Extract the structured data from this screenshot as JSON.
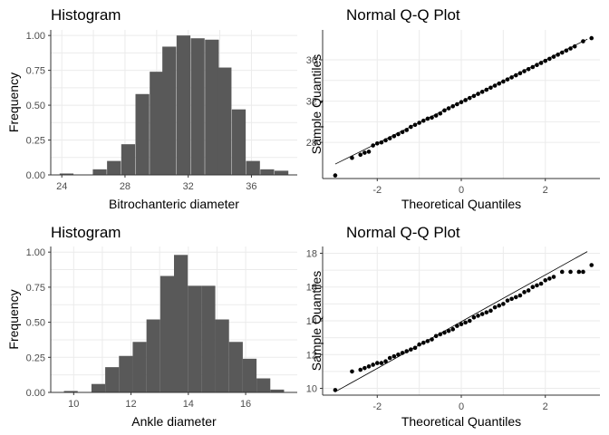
{
  "chart_data": [
    {
      "type": "bar",
      "title": "Histogram",
      "xlabel": "Bitrochanteric diameter",
      "ylabel": "Frequency",
      "xlim": [
        23.3,
        38.9
      ],
      "ylim": [
        0,
        1.04
      ],
      "xticks": [
        24,
        28,
        32,
        36
      ],
      "yticks": [
        0.0,
        0.25,
        0.5,
        0.75,
        1.0
      ],
      "ytick_labels": [
        "0.00",
        "0.25",
        "0.50",
        "0.75",
        "1.00"
      ],
      "bin_width": 0.875,
      "bins": [
        {
          "x": 24.3,
          "y": 0.01
        },
        {
          "x": 26.4,
          "y": 0.04
        },
        {
          "x": 27.3,
          "y": 0.1
        },
        {
          "x": 28.2,
          "y": 0.22
        },
        {
          "x": 29.1,
          "y": 0.58
        },
        {
          "x": 30.0,
          "y": 0.74
        },
        {
          "x": 30.8,
          "y": 0.92
        },
        {
          "x": 31.7,
          "y": 1.0
        },
        {
          "x": 32.6,
          "y": 0.98
        },
        {
          "x": 33.5,
          "y": 0.97
        },
        {
          "x": 34.3,
          "y": 0.77
        },
        {
          "x": 35.2,
          "y": 0.47
        },
        {
          "x": 36.1,
          "y": 0.1
        },
        {
          "x": 37.0,
          "y": 0.04
        },
        {
          "x": 37.9,
          "y": 0.03
        }
      ]
    },
    {
      "type": "scatter",
      "title": "Normal Q-Q Plot",
      "xlabel": "Theoretical Quantiles",
      "ylabel": "Sample Quantiles",
      "xlim": [
        -3.3,
        3.3
      ],
      "ylim": [
        24.5,
        38.9
      ],
      "xticks": [
        -2,
        0,
        2
      ],
      "yticks": [
        28,
        32,
        36
      ],
      "line": {
        "x": [
          -3.0,
          3.0
        ],
        "y": [
          25.9,
          38.0
        ]
      },
      "points": [
        [
          -3.0,
          24.8
        ],
        [
          -2.6,
          26.5
        ],
        [
          -2.4,
          26.8
        ],
        [
          -2.3,
          27.0
        ],
        [
          -2.2,
          27.1
        ],
        [
          -2.1,
          27.7
        ],
        [
          -2.0,
          27.9
        ],
        [
          -1.9,
          28.0
        ],
        [
          -1.8,
          28.2
        ],
        [
          -1.7,
          28.4
        ],
        [
          -1.6,
          28.6
        ],
        [
          -1.5,
          28.8
        ],
        [
          -1.4,
          29.0
        ],
        [
          -1.3,
          29.2
        ],
        [
          -1.2,
          29.5
        ],
        [
          -1.1,
          29.7
        ],
        [
          -1.0,
          29.9
        ],
        [
          -0.9,
          30.1
        ],
        [
          -0.8,
          30.3
        ],
        [
          -0.7,
          30.4
        ],
        [
          -0.6,
          30.6
        ],
        [
          -0.5,
          30.8
        ],
        [
          -0.4,
          31.1
        ],
        [
          -0.3,
          31.3
        ],
        [
          -0.2,
          31.5
        ],
        [
          -0.1,
          31.7
        ],
        [
          0.0,
          31.9
        ],
        [
          0.1,
          32.1
        ],
        [
          0.2,
          32.3
        ],
        [
          0.3,
          32.5
        ],
        [
          0.4,
          32.7
        ],
        [
          0.5,
          32.9
        ],
        [
          0.6,
          33.1
        ],
        [
          0.7,
          33.3
        ],
        [
          0.8,
          33.5
        ],
        [
          0.9,
          33.7
        ],
        [
          1.0,
          33.9
        ],
        [
          1.1,
          34.1
        ],
        [
          1.2,
          34.3
        ],
        [
          1.3,
          34.5
        ],
        [
          1.4,
          34.7
        ],
        [
          1.5,
          34.9
        ],
        [
          1.6,
          35.1
        ],
        [
          1.7,
          35.3
        ],
        [
          1.8,
          35.5
        ],
        [
          1.9,
          35.7
        ],
        [
          2.0,
          35.9
        ],
        [
          2.1,
          36.1
        ],
        [
          2.2,
          36.3
        ],
        [
          2.3,
          36.5
        ],
        [
          2.4,
          36.7
        ],
        [
          2.5,
          36.9
        ],
        [
          2.6,
          37.1
        ],
        [
          2.7,
          37.3
        ],
        [
          2.9,
          37.8
        ],
        [
          3.1,
          38.1
        ]
      ]
    },
    {
      "type": "bar",
      "title": "Histogram",
      "xlabel": "Ankle diameter",
      "ylabel": "Frequency",
      "xlim": [
        9.2,
        17.8
      ],
      "ylim": [
        0,
        1.04
      ],
      "xticks": [
        10,
        12,
        14,
        16
      ],
      "yticks": [
        0.0,
        0.25,
        0.5,
        0.75,
        1.0
      ],
      "ytick_labels": [
        "0.00",
        "0.25",
        "0.50",
        "0.75",
        "1.00"
      ],
      "bin_width": 0.48,
      "bins": [
        {
          "x": 9.9,
          "y": 0.01
        },
        {
          "x": 10.86,
          "y": 0.06
        },
        {
          "x": 11.34,
          "y": 0.18
        },
        {
          "x": 11.82,
          "y": 0.26
        },
        {
          "x": 12.3,
          "y": 0.36
        },
        {
          "x": 12.78,
          "y": 0.52
        },
        {
          "x": 13.26,
          "y": 0.83
        },
        {
          "x": 13.74,
          "y": 0.98
        },
        {
          "x": 14.22,
          "y": 0.76
        },
        {
          "x": 14.7,
          "y": 0.76
        },
        {
          "x": 15.18,
          "y": 0.52
        },
        {
          "x": 15.66,
          "y": 0.36
        },
        {
          "x": 16.14,
          "y": 0.24
        },
        {
          "x": 16.62,
          "y": 0.1
        },
        {
          "x": 17.1,
          "y": 0.02
        }
      ]
    },
    {
      "type": "scatter",
      "title": "Normal Q-Q Plot",
      "xlabel": "Theoretical Quantiles",
      "ylabel": "Sample Quantiles",
      "xlim": [
        -3.3,
        3.3
      ],
      "ylim": [
        9.6,
        18.4
      ],
      "xticks": [
        -2,
        0,
        2
      ],
      "yticks": [
        10,
        12,
        14,
        16,
        18
      ],
      "line": {
        "x": [
          -3.0,
          3.0
        ],
        "y": [
          9.8,
          18.1
        ]
      },
      "points": [
        [
          -3.0,
          9.9
        ],
        [
          -2.6,
          11.0
        ],
        [
          -2.4,
          11.1
        ],
        [
          -2.3,
          11.2
        ],
        [
          -2.2,
          11.3
        ],
        [
          -2.1,
          11.4
        ],
        [
          -2.0,
          11.5
        ],
        [
          -1.9,
          11.5
        ],
        [
          -1.8,
          11.6
        ],
        [
          -1.7,
          11.8
        ],
        [
          -1.6,
          11.9
        ],
        [
          -1.5,
          12.0
        ],
        [
          -1.4,
          12.1
        ],
        [
          -1.3,
          12.2
        ],
        [
          -1.2,
          12.3
        ],
        [
          -1.1,
          12.4
        ],
        [
          -1.0,
          12.6
        ],
        [
          -0.9,
          12.7
        ],
        [
          -0.8,
          12.8
        ],
        [
          -0.7,
          12.9
        ],
        [
          -0.6,
          13.1
        ],
        [
          -0.5,
          13.2
        ],
        [
          -0.4,
          13.3
        ],
        [
          -0.3,
          13.4
        ],
        [
          -0.2,
          13.5
        ],
        [
          -0.1,
          13.7
        ],
        [
          0.0,
          13.8
        ],
        [
          0.1,
          13.9
        ],
        [
          0.2,
          14.0
        ],
        [
          0.3,
          14.2
        ],
        [
          0.4,
          14.3
        ],
        [
          0.5,
          14.4
        ],
        [
          0.6,
          14.5
        ],
        [
          0.7,
          14.6
        ],
        [
          0.8,
          14.8
        ],
        [
          0.9,
          14.9
        ],
        [
          1.0,
          15.0
        ],
        [
          1.1,
          15.2
        ],
        [
          1.2,
          15.3
        ],
        [
          1.3,
          15.4
        ],
        [
          1.4,
          15.5
        ],
        [
          1.5,
          15.7
        ],
        [
          1.6,
          15.8
        ],
        [
          1.7,
          16.0
        ],
        [
          1.8,
          16.1
        ],
        [
          1.9,
          16.2
        ],
        [
          2.0,
          16.4
        ],
        [
          2.1,
          16.5
        ],
        [
          2.2,
          16.6
        ],
        [
          2.4,
          16.9
        ],
        [
          2.6,
          16.9
        ],
        [
          2.8,
          16.9
        ],
        [
          2.9,
          16.9
        ],
        [
          3.1,
          17.3
        ]
      ]
    }
  ]
}
